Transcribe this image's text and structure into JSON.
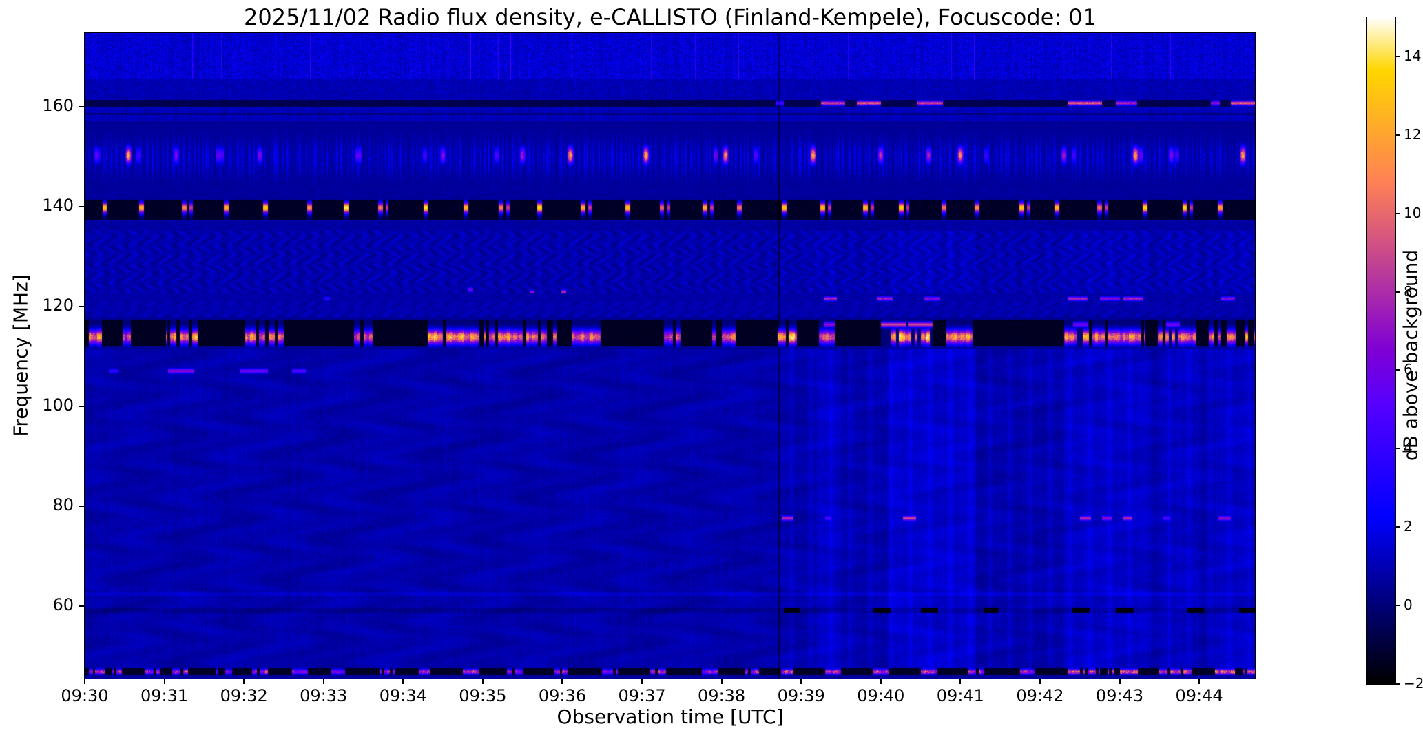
{
  "figure": {
    "title": "2025/11/02  Radio flux density, e-CALLISTO (Finland-Kempele), Focuscode: 01",
    "xlabel": "Observation time [UTC]",
    "ylabel": "Frequency [MHz]",
    "colorbar_label": "dB above background"
  },
  "chart_data": {
    "type": "heatmap",
    "subtype": "radio-spectrogram",
    "title": "2025/11/02  Radio flux density, e-CALLISTO (Finland-Kempele), Focuscode: 01",
    "xlabel": "Observation time [UTC]",
    "ylabel": "Frequency [MHz]",
    "time_start_utc": "09:30",
    "x_range_minutes": [
      0,
      14.7
    ],
    "freq_range_mhz": [
      45.5,
      174.8
    ],
    "x_tick_minutes": [
      0,
      1,
      2,
      3,
      4,
      5,
      6,
      7,
      8,
      9,
      10,
      11,
      12,
      13,
      14
    ],
    "x_tick_labels": [
      "09:30",
      "09:31",
      "09:32",
      "09:33",
      "09:34",
      "09:35",
      "09:36",
      "09:37",
      "09:38",
      "09:39",
      "09:40",
      "09:41",
      "09:42",
      "09:43",
      "09:44"
    ],
    "y_tick_mhz": [
      160,
      140,
      120,
      100,
      80,
      60
    ],
    "grid": false,
    "colorbar": {
      "label": "dB above background",
      "range": [
        -2,
        15
      ],
      "ticks": [
        [
          14,
          "14"
        ],
        [
          12,
          "12"
        ],
        [
          10,
          "10"
        ],
        [
          8,
          "8"
        ],
        [
          6,
          "6"
        ],
        [
          4,
          "4"
        ],
        [
          2,
          "2"
        ],
        [
          0,
          "0"
        ],
        [
          -2,
          "−2"
        ]
      ],
      "colormap": "gnuplot2"
    },
    "background_db": [
      0,
      1.5
    ],
    "features": {
      "vertical_dark_line_min": 8.72,
      "column_boosts": [
        [
          9.2,
          9.5,
          0.45
        ],
        [
          10.1,
          11.2,
          0.5
        ],
        [
          12.3,
          13.35,
          0.4
        ],
        [
          13.5,
          14.0,
          0.3
        ],
        [
          14.15,
          14.95,
          0.35
        ]
      ],
      "top_streak_band_mhz": [
        165.5,
        174.8
      ],
      "band_161": {
        "freq_center_mhz": 160.75,
        "bursts": [
          [
            8.68,
            8.78,
            5
          ],
          [
            9.25,
            9.55,
            9
          ],
          [
            9.7,
            10.0,
            10
          ],
          [
            10.45,
            10.78,
            9
          ],
          [
            12.35,
            12.78,
            10
          ],
          [
            12.95,
            13.22,
            8
          ],
          [
            14.15,
            14.26,
            7
          ],
          [
            14.4,
            14.78,
            10
          ]
        ]
      },
      "striped_band_150": {
        "freq_mhz": [
          144.2,
          157.2
        ],
        "comb_period_s": 3.2,
        "bursts": [
          [
            0.15,
            6
          ],
          [
            0.55,
            13
          ],
          [
            1.15,
            7
          ],
          [
            2.2,
            7
          ],
          [
            3.45,
            6
          ],
          [
            4.5,
            7
          ],
          [
            5.5,
            8
          ],
          [
            6.1,
            13
          ],
          [
            7.05,
            13
          ],
          [
            8.05,
            12
          ],
          [
            9.15,
            13
          ],
          [
            10.0,
            9
          ],
          [
            10.6,
            8
          ],
          [
            11.0,
            12
          ],
          [
            12.3,
            8
          ],
          [
            13.2,
            13
          ],
          [
            13.65,
            7
          ],
          [
            14.55,
            13
          ]
        ]
      },
      "black_band_139": {
        "freq_mhz": [
          137.4,
          141.4
        ],
        "burst_center_mhz": 139.8,
        "first_burst_min": 0.27,
        "burst_period_min": 0.5,
        "burst_amp_db": 14
      },
      "black_band_114": {
        "freq_mhz": [
          111.4,
          117.9
        ],
        "main_center_mhz": 113.9,
        "upper_center_mhz": 116.4,
        "main_bursts": [
          [
            0.05,
            0.22,
            12
          ],
          [
            0.48,
            0.58,
            9
          ],
          [
            1.02,
            1.52,
            13
          ],
          [
            2.02,
            2.52,
            12
          ],
          [
            3.38,
            3.62,
            10
          ],
          [
            4.28,
            5.0,
            13
          ],
          [
            5.02,
            5.5,
            12
          ],
          [
            5.55,
            5.95,
            11
          ],
          [
            6.12,
            6.48,
            12
          ],
          [
            7.28,
            7.48,
            10
          ],
          [
            7.88,
            8.18,
            11
          ],
          [
            8.7,
            8.95,
            14
          ],
          [
            9.22,
            9.42,
            10
          ],
          [
            10.12,
            10.62,
            14
          ],
          [
            10.82,
            11.15,
            12
          ],
          [
            12.3,
            12.82,
            12
          ],
          [
            12.85,
            13.32,
            12
          ],
          [
            13.48,
            14.02,
            11
          ],
          [
            14.12,
            14.52,
            12
          ],
          [
            14.58,
            14.95,
            12
          ]
        ],
        "upper_bursts": [
          [
            9.28,
            9.42,
            7
          ],
          [
            10.0,
            10.32,
            9
          ],
          [
            10.35,
            10.65,
            9
          ],
          [
            12.42,
            12.6,
            6
          ],
          [
            13.58,
            13.76,
            6
          ]
        ]
      },
      "dash_line_121": {
        "freq_center_mhz": 121.6,
        "bursts": [
          [
            3.0,
            3.08,
            4
          ],
          [
            9.28,
            9.45,
            8
          ],
          [
            9.95,
            10.15,
            8
          ],
          [
            10.55,
            10.75,
            7
          ],
          [
            12.35,
            12.6,
            8
          ],
          [
            12.75,
            13.0,
            7
          ],
          [
            13.05,
            13.3,
            8
          ],
          [
            14.28,
            14.45,
            7
          ],
          [
            14.72,
            14.95,
            8
          ]
        ]
      },
      "dash_line_107": {
        "freq_center_mhz": 107.1,
        "bursts": [
          [
            0.3,
            0.42,
            4
          ],
          [
            1.05,
            1.38,
            7
          ],
          [
            1.95,
            2.3,
            6
          ],
          [
            2.6,
            2.78,
            5
          ]
        ]
      },
      "dash_line_77": {
        "freq_center_mhz": 77.6,
        "bursts": [
          [
            8.76,
            8.9,
            8
          ],
          [
            9.3,
            9.38,
            5
          ],
          [
            10.28,
            10.44,
            9
          ],
          [
            12.5,
            12.64,
            8
          ],
          [
            12.78,
            12.9,
            7
          ],
          [
            13.04,
            13.16,
            8
          ],
          [
            13.55,
            13.64,
            5
          ],
          [
            14.24,
            14.4,
            7
          ]
        ]
      },
      "line_59": {
        "freq_center_mhz": 59.2,
        "black_dashes": [
          [
            8.78,
            8.98
          ],
          [
            9.9,
            10.12
          ],
          [
            10.5,
            10.72
          ],
          [
            11.3,
            11.48
          ],
          [
            12.4,
            12.62
          ],
          [
            12.95,
            13.18
          ],
          [
            13.85,
            14.06
          ],
          [
            14.5,
            14.72
          ]
        ]
      },
      "bottom_band_46": {
        "freq_mhz": [
          46.2,
          47.6
        ],
        "dash_center_mhz": 46.85,
        "bursts": [
          [
            0.05,
            0.25,
            8
          ],
          [
            0.35,
            0.5,
            7
          ],
          [
            0.75,
            0.95,
            7
          ],
          [
            1.1,
            1.3,
            8
          ],
          [
            1.65,
            1.85,
            6
          ],
          [
            2.1,
            2.3,
            8
          ],
          [
            2.6,
            2.8,
            7
          ],
          [
            3.1,
            3.3,
            7
          ],
          [
            3.7,
            3.9,
            8
          ],
          [
            4.2,
            4.4,
            7
          ],
          [
            4.75,
            4.95,
            8
          ],
          [
            5.3,
            5.5,
            7
          ],
          [
            5.9,
            6.1,
            8
          ],
          [
            6.5,
            6.7,
            7
          ],
          [
            7.1,
            7.3,
            8
          ],
          [
            7.75,
            7.95,
            7
          ],
          [
            8.3,
            8.5,
            8
          ],
          [
            8.75,
            8.95,
            9
          ],
          [
            9.3,
            9.5,
            8
          ],
          [
            9.9,
            10.1,
            8
          ],
          [
            10.5,
            10.7,
            9
          ],
          [
            11.1,
            11.3,
            8
          ],
          [
            11.75,
            11.95,
            8
          ],
          [
            12.35,
            12.75,
            9
          ],
          [
            12.85,
            13.25,
            9
          ],
          [
            13.5,
            13.9,
            9
          ],
          [
            14.2,
            14.45,
            10
          ],
          [
            14.55,
            14.9,
            9
          ]
        ]
      },
      "spot_bursts": [
        [
          4.85,
          123.4,
          6
        ],
        [
          5.62,
          122.8,
          7
        ],
        [
          6.02,
          122.9,
          8
        ]
      ]
    }
  }
}
